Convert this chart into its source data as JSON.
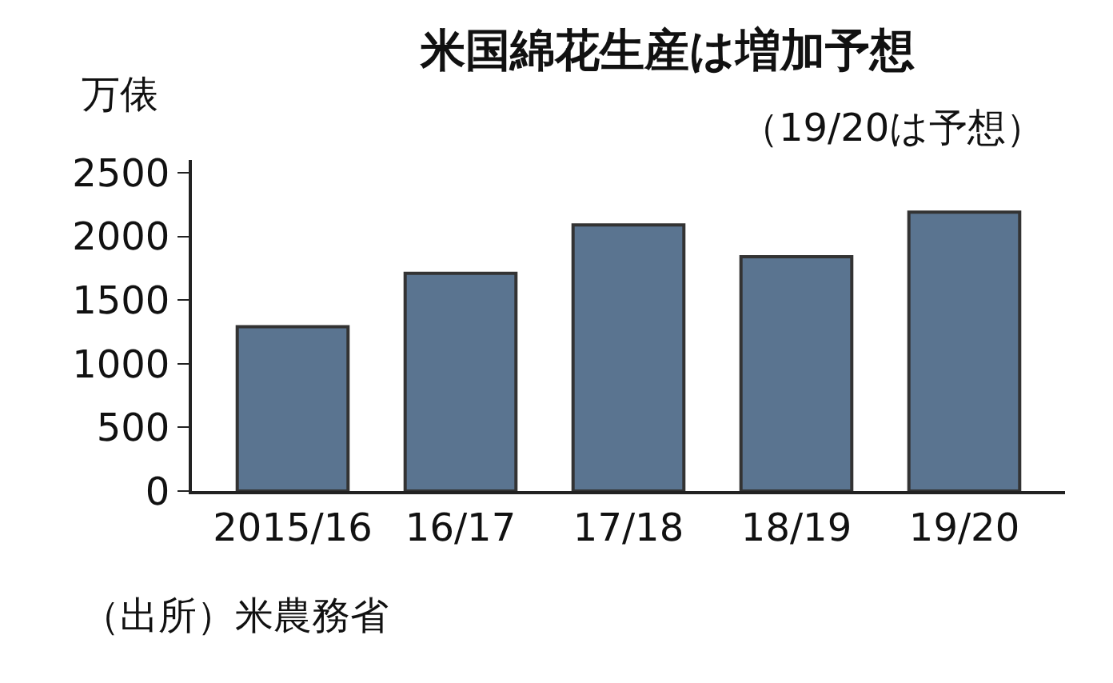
{
  "chart_data": {
    "type": "bar",
    "title": "米国綿花生産は増加予想",
    "ylabel": "万俵",
    "subtitle": "（19/20は予想）",
    "annotations": [
      "（出所）米農務省"
    ],
    "categories": [
      "2015/16",
      "16/17",
      "17/18",
      "18/19",
      "19/20"
    ],
    "values": [
      1290,
      1710,
      2090,
      1840,
      2190
    ],
    "color": "#5a7490",
    "ylim": [
      0,
      2600
    ],
    "yticks": [
      0,
      500,
      1000,
      1500,
      2000,
      2500
    ],
    "grid": false
  }
}
